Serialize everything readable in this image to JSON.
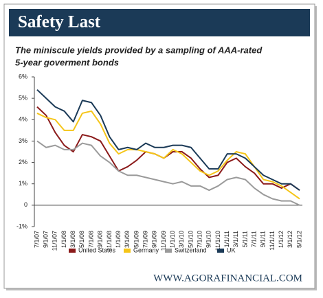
{
  "chart_data": {
    "type": "line",
    "title": "Safety Last",
    "subtitle": [
      "The miniscule yields provided by a sampling of AAA-rated",
      "5-year goverment bonds"
    ],
    "source": "WWW.AGORAFINANCIAL.COM",
    "categories": [
      "7/1/07",
      "9/1/07",
      "11/1/07",
      "1/1/08",
      "3/1/08",
      "5/1/08",
      "7/1/08",
      "9/1/08",
      "11/1/08",
      "1/1/09",
      "3/1/09",
      "5/1/09",
      "7/1/09",
      "9/1/09",
      "11/1/09",
      "1/1/10",
      "3/1/10",
      "5/1/10",
      "7/1/10",
      "9/1/10",
      "11/1/10",
      "1/1/11",
      "3/1/11",
      "5/1/11",
      "7/1/11",
      "9/1/11",
      "11/1/11",
      "1/1/12",
      "3/1/12",
      "5/1/12"
    ],
    "series": [
      {
        "name": "United States",
        "color": "#8b1a1a",
        "values": [
          4.6,
          4.2,
          3.4,
          2.8,
          2.5,
          3.3,
          3.2,
          3.0,
          2.3,
          1.6,
          1.8,
          2.1,
          2.5,
          2.4,
          2.2,
          2.5,
          2.5,
          2.2,
          1.7,
          1.3,
          1.4,
          2.0,
          2.2,
          1.8,
          1.5,
          1.0,
          1.0,
          0.8,
          1.0,
          0.7
        ]
      },
      {
        "name": "Germany",
        "color": "#f5c518",
        "values": [
          4.3,
          4.1,
          4.0,
          3.5,
          3.5,
          4.3,
          4.4,
          3.8,
          2.9,
          2.4,
          2.6,
          2.6,
          2.5,
          2.4,
          2.2,
          2.6,
          2.4,
          2.0,
          1.6,
          1.4,
          1.6,
          2.1,
          2.5,
          2.4,
          1.8,
          1.2,
          1.1,
          0.9,
          0.6,
          0.3
        ]
      },
      {
        "name": "Switzerland",
        "color": "#9a9a9a",
        "values": [
          3.0,
          2.7,
          2.8,
          2.6,
          2.6,
          2.9,
          2.8,
          2.3,
          2.0,
          1.6,
          1.4,
          1.4,
          1.3,
          1.2,
          1.1,
          1.0,
          1.1,
          0.9,
          0.9,
          0.7,
          0.9,
          1.2,
          1.3,
          1.2,
          0.8,
          0.5,
          0.3,
          0.2,
          0.2,
          0.0
        ]
      },
      {
        "name": "UK",
        "color": "#1b3a57",
        "values": [
          5.4,
          5.0,
          4.6,
          4.4,
          3.9,
          4.9,
          4.8,
          4.2,
          3.2,
          2.6,
          2.7,
          2.6,
          2.9,
          2.7,
          2.7,
          2.8,
          2.8,
          2.7,
          2.2,
          1.7,
          1.7,
          2.4,
          2.4,
          2.2,
          1.8,
          1.4,
          1.2,
          1.0,
          1.0,
          0.7
        ]
      }
    ],
    "ylim": [
      -1,
      6
    ],
    "yticks": [
      {
        "value": -1,
        "label": "-1%"
      },
      0,
      {
        "value": 1,
        "label": "1%"
      },
      {
        "value": 2,
        "label": "2%"
      },
      {
        "value": 3,
        "label": "3%"
      },
      {
        "value": 4,
        "label": "4%"
      },
      {
        "value": 5,
        "label": "5%"
      },
      {
        "value": 6,
        "label": "6%"
      }
    ],
    "grid": false,
    "legend": "bottom"
  }
}
